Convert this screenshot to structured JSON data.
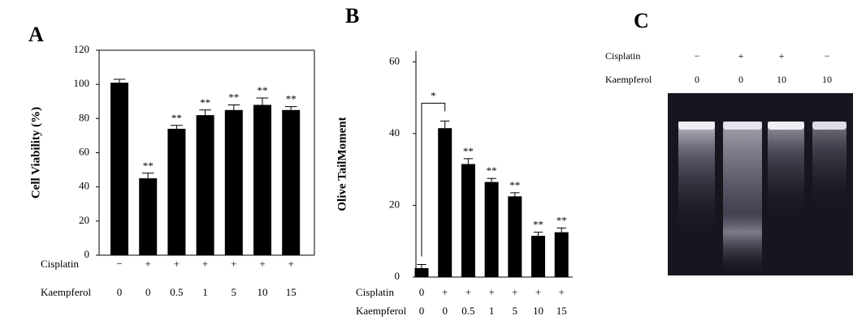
{
  "chart_data": [
    {
      "type": "bar",
      "panel_label": "A",
      "ylabel": "Cell Viability (%)",
      "category_rows": [
        {
          "name": "Cisplatin",
          "labels": [
            "−",
            "+",
            "+",
            "+",
            "+",
            "+",
            "+"
          ]
        },
        {
          "name": "Kaempferol",
          "labels": [
            "0",
            "0",
            "0.5",
            "1",
            "5",
            "10",
            "15"
          ]
        }
      ],
      "values": [
        101,
        45,
        74,
        82,
        85,
        88,
        85
      ],
      "errors": [
        2,
        3,
        2,
        3,
        3,
        4,
        2
      ],
      "annotations": [
        null,
        "**",
        "**",
        "**",
        "**",
        "**",
        "**"
      ],
      "color": "#000000",
      "frame": true,
      "ylim": [
        0,
        120
      ],
      "yticks": [
        0,
        20,
        40,
        60,
        80,
        100,
        120
      ]
    },
    {
      "type": "bar",
      "panel_label": "B",
      "ylabel": "Olive TailMoment",
      "category_rows": [
        {
          "name": "Cisplatin",
          "labels": [
            "0",
            "+",
            "+",
            "+",
            "+",
            "+",
            "+"
          ]
        },
        {
          "name": "Kaempferol",
          "labels": [
            "0",
            "0",
            "0.5",
            "1",
            "5",
            "10",
            "15"
          ]
        }
      ],
      "values": [
        2.5,
        41.5,
        31.5,
        26.5,
        22.5,
        11.5,
        12.5
      ],
      "errors": [
        1,
        2,
        1.5,
        1,
        1,
        1,
        1.2
      ],
      "annotations": [
        null,
        "*",
        "**",
        "**",
        "**",
        "**",
        "**"
      ],
      "color": "#000000",
      "frame": false,
      "ylim": [
        0,
        63
      ],
      "yticks": [
        0,
        20,
        40,
        60
      ]
    }
  ],
  "gel": {
    "panel_label": "C",
    "rows": [
      {
        "name": "Cisplatin",
        "labels": [
          "−",
          "+",
          "+",
          "−"
        ]
      },
      {
        "name": "Kaempferol",
        "labels": [
          "0",
          "0",
          "10",
          "10"
        ]
      }
    ]
  }
}
